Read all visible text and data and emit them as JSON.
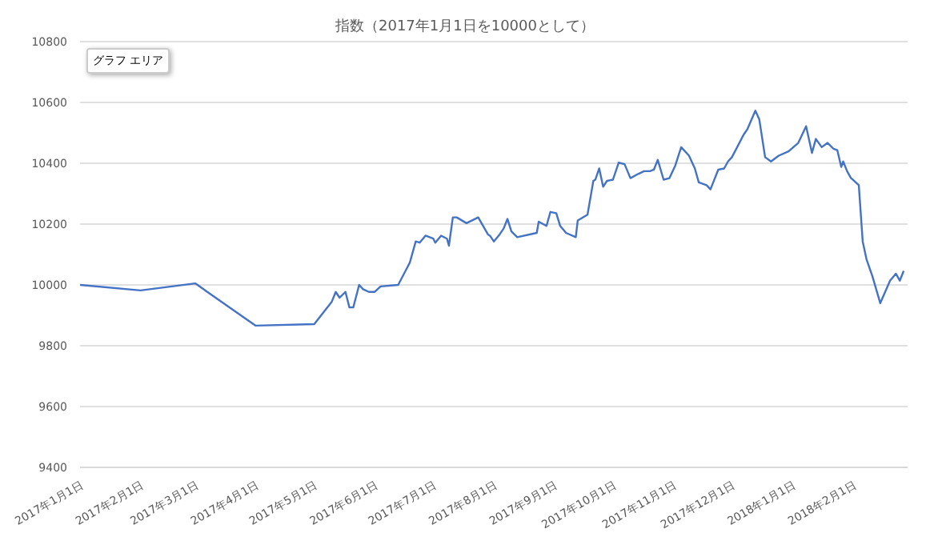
{
  "chart_data": {
    "type": "line",
    "title": "指数（2017年1月1日を10000として）",
    "annotations": [
      "グラフ エリア"
    ],
    "x": [
      "2017-01-01",
      "2017-02-01",
      "2017-03-01",
      "2017-04-01",
      "2017-05-01",
      "2017-05-10",
      "2017-05-12",
      "2017-05-14",
      "2017-05-17",
      "2017-05-19",
      "2017-05-21",
      "2017-05-24",
      "2017-05-26",
      "2017-05-29",
      "2017-06-01",
      "2017-06-04",
      "2017-06-13",
      "2017-06-19",
      "2017-06-22",
      "2017-06-24",
      "2017-06-27",
      "2017-07-01",
      "2017-07-02",
      "2017-07-05",
      "2017-07-08",
      "2017-07-09",
      "2017-07-11",
      "2017-07-13",
      "2017-07-18",
      "2017-07-24",
      "2017-07-29",
      "2017-07-30",
      "2017-08-01",
      "2017-08-04",
      "2017-08-06",
      "2017-08-08",
      "2017-08-10",
      "2017-08-13",
      "2017-08-23",
      "2017-08-24",
      "2017-08-28",
      "2017-08-30",
      "2017-09-02",
      "2017-09-04",
      "2017-09-07",
      "2017-09-12",
      "2017-09-13",
      "2017-09-18",
      "2017-09-21",
      "2017-09-22",
      "2017-09-24",
      "2017-09-26",
      "2017-09-28",
      "2017-10-01",
      "2017-10-03",
      "2017-10-04",
      "2017-10-07",
      "2017-10-10",
      "2017-10-14",
      "2017-10-17",
      "2017-10-20",
      "2017-10-22",
      "2017-10-24",
      "2017-10-27",
      "2017-10-30",
      "2017-11-02",
      "2017-11-05",
      "2017-11-09",
      "2017-11-12",
      "2017-11-14",
      "2017-11-18",
      "2017-11-20",
      "2017-11-24",
      "2017-11-27",
      "2017-11-29",
      "2017-12-01",
      "2017-12-04",
      "2017-12-07",
      "2017-12-09",
      "2017-12-13",
      "2017-12-15",
      "2017-12-18",
      "2017-12-21",
      "2017-12-25",
      "2017-12-30",
      "2018-01-04",
      "2018-01-08",
      "2018-01-11",
      "2018-01-13",
      "2018-01-16",
      "2018-01-19",
      "2018-01-22",
      "2018-01-24",
      "2018-01-26",
      "2018-01-27",
      "2018-01-29",
      "2018-01-31",
      "2018-02-01",
      "2018-02-04",
      "2018-02-06",
      "2018-02-08",
      "2018-02-11",
      "2018-02-15",
      "2018-02-20",
      "2018-02-23",
      "2018-02-25",
      "2018-02-27"
    ],
    "series": [
      {
        "color": "#4472c4",
        "values": [
          10000,
          9982,
          10005,
          9866,
          9871,
          9945,
          9977,
          9958,
          9977,
          9926,
          9926,
          10000,
          9986,
          9977,
          9977,
          9995,
          10000,
          10074,
          10143,
          10139,
          10162,
          10152,
          10139,
          10162,
          10152,
          10129,
          10222,
          10222,
          10203,
          10222,
          10166,
          10162,
          10143,
          10166,
          10185,
          10217,
          10176,
          10157,
          10171,
          10208,
          10194,
          10240,
          10236,
          10194,
          10171,
          10157,
          10212,
          10231,
          10342,
          10346,
          10383,
          10323,
          10342,
          10346,
          10383,
          10402,
          10397,
          10351,
          10365,
          10374,
          10374,
          10379,
          10411,
          10346,
          10351,
          10393,
          10453,
          10425,
          10383,
          10337,
          10328,
          10314,
          10379,
          10383,
          10406,
          10420,
          10457,
          10494,
          10513,
          10573,
          10545,
          10420,
          10406,
          10425,
          10439,
          10467,
          10522,
          10434,
          10480,
          10453,
          10467,
          10448,
          10443,
          10388,
          10406,
          10374,
          10351,
          10346,
          10328,
          10143,
          10083,
          10028,
          9940,
          10014,
          10037,
          10014,
          10046
        ]
      }
    ],
    "xlim": [
      "2017-01-01",
      "2018-03-01"
    ],
    "xticks": [
      {
        "value": "2017-01-01",
        "label": "2017年1月1日"
      },
      {
        "value": "2017-02-01",
        "label": "2017年2月1日"
      },
      {
        "value": "2017-03-01",
        "label": "2017年3月1日"
      },
      {
        "value": "2017-04-01",
        "label": "2017年4月1日"
      },
      {
        "value": "2017-05-01",
        "label": "2017年5月1日"
      },
      {
        "value": "2017-06-01",
        "label": "2017年6月1日"
      },
      {
        "value": "2017-07-01",
        "label": "2017年7月1日"
      },
      {
        "value": "2017-08-01",
        "label": "2017年8月1日"
      },
      {
        "value": "2017-09-01",
        "label": "2017年9月1日"
      },
      {
        "value": "2017-10-01",
        "label": "2017年10月1日"
      },
      {
        "value": "2017-11-01",
        "label": "2017年11月1日"
      },
      {
        "value": "2017-12-01",
        "label": "2017年12月1日"
      },
      {
        "value": "2018-01-01",
        "label": "2018年1月1日"
      },
      {
        "value": "2018-02-01",
        "label": "2018年2月1日"
      }
    ],
    "ylim": [
      9400,
      10800
    ],
    "yticks": [
      9400,
      9600,
      9800,
      10000,
      10200,
      10400,
      10600,
      10800
    ],
    "grid": "y",
    "legend": false,
    "marker": "none",
    "line_style": "solid"
  }
}
